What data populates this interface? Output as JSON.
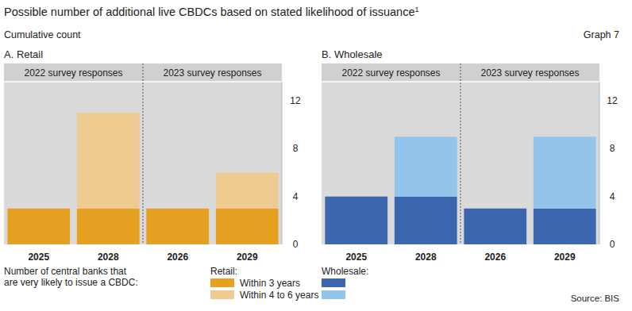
{
  "title": "Possible number of additional live CBDCs based on stated likelihood of issuance",
  "title_note": "1",
  "subtitle": "Cumulative count",
  "graph_label": "Graph 7",
  "legend_caption": [
    "Number of central banks that",
    "are very likely to issue a CBDC:"
  ],
  "source": "Source: BIS",
  "chart_data": [
    {
      "type": "bar",
      "title": "A. Retail",
      "stacked": true,
      "grid": false,
      "legend": "bottom",
      "legend_title": "Retail:",
      "group_labels": [
        "2022 survey responses",
        "2023 survey responses"
      ],
      "categories": [
        "2025",
        "2028",
        "2026",
        "2029"
      ],
      "series": [
        {
          "name": "Within 3 years",
          "color": "#e6a122",
          "values": [
            3,
            3,
            3,
            3
          ]
        },
        {
          "name": "Within 4 to 6 years",
          "color": "#eecb90",
          "values": [
            0,
            8,
            0,
            3
          ]
        }
      ],
      "ylim": [
        0,
        13.6
      ],
      "yticks": [
        0,
        4,
        8,
        12
      ]
    },
    {
      "type": "bar",
      "title": "B. Wholesale",
      "stacked": true,
      "grid": false,
      "legend": "bottom",
      "legend_title": "Wholesale:",
      "group_labels": [
        "2022 survey responses",
        "2023 survey responses"
      ],
      "categories": [
        "2025",
        "2028",
        "2026",
        "2029"
      ],
      "series": [
        {
          "color": "#3b67ae",
          "values": [
            4,
            4,
            3,
            3
          ]
        },
        {
          "color": "#92c4ec",
          "values": [
            0,
            5,
            0,
            6
          ]
        }
      ],
      "ylim": [
        0,
        13.6
      ],
      "yticks": [
        0,
        4,
        8,
        12
      ]
    }
  ]
}
